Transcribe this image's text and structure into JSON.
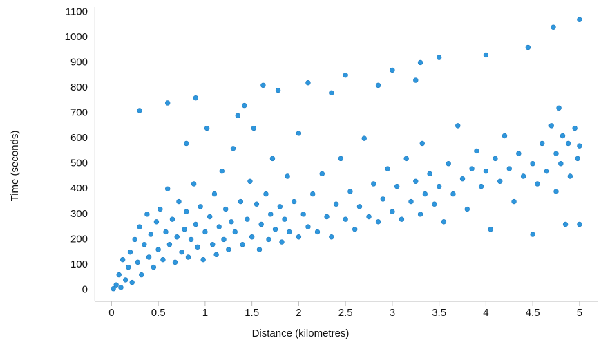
{
  "chart_data": {
    "type": "scatter",
    "x_label": "Distance (kilometres)",
    "y_label": "Time (seconds)",
    "color": "#2f96dc",
    "xlim": [
      -0.18,
      5.2
    ],
    "ylim": [
      -45,
      1120
    ],
    "xticks": [
      0,
      0.5,
      1,
      1.5,
      2,
      2.5,
      3,
      3.5,
      4,
      4.5,
      5
    ],
    "yticks": [
      0,
      100,
      200,
      300,
      400,
      500,
      600,
      700,
      800,
      900,
      1000,
      1100
    ],
    "x": [
      0.02,
      0.05,
      0.08,
      0.1,
      0.12,
      0.15,
      0.18,
      0.2,
      0.22,
      0.25,
      0.28,
      0.3,
      0.3,
      0.32,
      0.35,
      0.38,
      0.4,
      0.42,
      0.45,
      0.48,
      0.5,
      0.52,
      0.55,
      0.58,
      0.6,
      0.6,
      0.62,
      0.65,
      0.68,
      0.7,
      0.72,
      0.75,
      0.78,
      0.8,
      0.8,
      0.82,
      0.85,
      0.88,
      0.9,
      0.9,
      0.92,
      0.95,
      0.98,
      1.0,
      1.02,
      1.05,
      1.08,
      1.1,
      1.12,
      1.15,
      1.18,
      1.2,
      1.22,
      1.25,
      1.28,
      1.3,
      1.32,
      1.35,
      1.38,
      1.4,
      1.42,
      1.45,
      1.48,
      1.5,
      1.52,
      1.55,
      1.58,
      1.6,
      1.62,
      1.65,
      1.68,
      1.7,
      1.72,
      1.75,
      1.78,
      1.8,
      1.82,
      1.85,
      1.88,
      1.9,
      1.95,
      2.0,
      2.0,
      2.05,
      2.1,
      2.1,
      2.15,
      2.2,
      2.25,
      2.3,
      2.35,
      2.35,
      2.4,
      2.45,
      2.5,
      2.5,
      2.55,
      2.6,
      2.65,
      2.7,
      2.75,
      2.8,
      2.85,
      2.85,
      2.9,
      2.95,
      3.0,
      3.0,
      3.05,
      3.1,
      3.15,
      3.2,
      3.25,
      3.25,
      3.3,
      3.3,
      3.32,
      3.35,
      3.4,
      3.45,
      3.5,
      3.5,
      3.55,
      3.6,
      3.65,
      3.7,
      3.75,
      3.8,
      3.85,
      3.9,
      3.95,
      4.0,
      4.0,
      4.05,
      4.1,
      4.15,
      4.2,
      4.25,
      4.3,
      4.35,
      4.4,
      4.45,
      4.5,
      4.5,
      4.55,
      4.6,
      4.65,
      4.7,
      4.72,
      4.75,
      4.75,
      4.78,
      4.8,
      4.82,
      4.85,
      4.88,
      4.9,
      4.95,
      4.98,
      5.0,
      5.0,
      5.0
    ],
    "values": [
      5,
      20,
      60,
      10,
      120,
      40,
      90,
      150,
      30,
      200,
      110,
      710,
      250,
      60,
      180,
      300,
      130,
      220,
      90,
      270,
      160,
      320,
      120,
      230,
      740,
      400,
      180,
      280,
      110,
      210,
      350,
      150,
      240,
      580,
      310,
      130,
      200,
      420,
      760,
      260,
      170,
      330,
      120,
      230,
      640,
      290,
      180,
      380,
      140,
      250,
      470,
      200,
      320,
      160,
      270,
      560,
      230,
      690,
      350,
      180,
      730,
      280,
      430,
      210,
      640,
      340,
      160,
      260,
      810,
      380,
      200,
      300,
      520,
      240,
      790,
      330,
      190,
      280,
      450,
      230,
      350,
      210,
      620,
      300,
      820,
      250,
      380,
      230,
      460,
      290,
      780,
      210,
      340,
      520,
      280,
      850,
      390,
      240,
      330,
      600,
      290,
      420,
      810,
      270,
      360,
      480,
      310,
      870,
      410,
      280,
      520,
      350,
      830,
      430,
      300,
      900,
      580,
      380,
      460,
      340,
      920,
      410,
      270,
      500,
      380,
      650,
      440,
      320,
      480,
      550,
      410,
      930,
      470,
      240,
      520,
      430,
      610,
      480,
      350,
      540,
      450,
      960,
      500,
      220,
      420,
      580,
      470,
      650,
      1040,
      540,
      390,
      720,
      500,
      610,
      260,
      580,
      450,
      640,
      520,
      1070,
      570,
      260
    ]
  }
}
